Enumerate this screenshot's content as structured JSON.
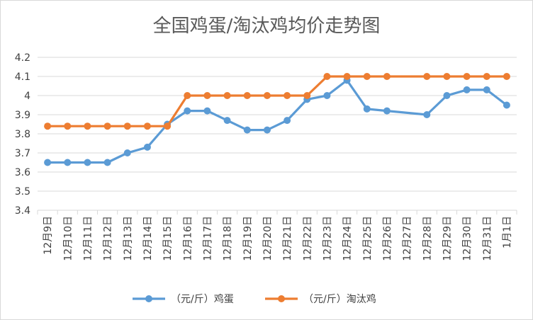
{
  "chart_data": {
    "type": "line",
    "title": "全国鸡蛋/淘汰鸡均价走势图",
    "categories": [
      "12月9日",
      "12月10日",
      "12月11日",
      "12月12日",
      "12月13日",
      "12月14日",
      "12月15日",
      "12月16日",
      "12月17日",
      "12月18日",
      "12月19日",
      "12月20日",
      "12月21日",
      "12月22日",
      "12月23日",
      "12月24日",
      "12月25日",
      "12月26日",
      "12月27日",
      "12月28日",
      "12月29日",
      "12月30日",
      "12月31日",
      "1月1日"
    ],
    "series": [
      {
        "name": "（元/斤）鸡蛋",
        "color": "#5b9bd5",
        "values": [
          3.65,
          3.65,
          3.65,
          3.65,
          3.7,
          3.73,
          3.85,
          3.92,
          3.92,
          3.87,
          3.82,
          3.82,
          3.87,
          3.98,
          4.0,
          4.08,
          3.93,
          3.92,
          null,
          3.9,
          4.0,
          4.03,
          4.03,
          3.95
        ]
      },
      {
        "name": "（元/斤）淘汰鸡",
        "color": "#ed7d31",
        "values": [
          3.84,
          3.84,
          3.84,
          3.84,
          3.84,
          3.84,
          3.84,
          4.0,
          4.0,
          4.0,
          4.0,
          4.0,
          4.0,
          4.0,
          4.1,
          4.1,
          4.1,
          4.1,
          null,
          4.1,
          4.1,
          4.1,
          4.1,
          4.1
        ]
      }
    ],
    "ylim": [
      3.4,
      4.2
    ],
    "yticks": [
      "3.4",
      "3.5",
      "3.6",
      "3.7",
      "3.8",
      "3.9",
      "4",
      "4.1",
      "4.2"
    ],
    "grid": true,
    "legend": "bottom"
  }
}
